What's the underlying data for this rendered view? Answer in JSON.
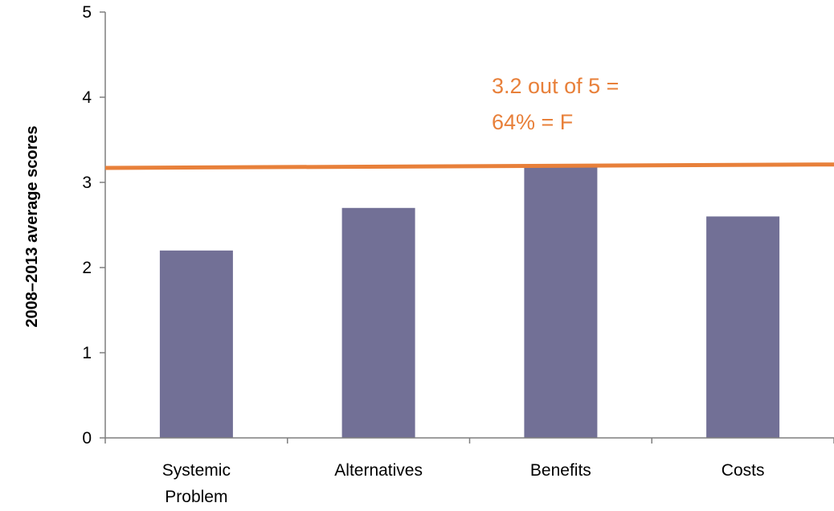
{
  "chart_data": {
    "type": "bar",
    "categories": [
      [
        "Systemic",
        "Problem"
      ],
      [
        "Alternatives"
      ],
      [
        "Benefits"
      ],
      [
        "Costs"
      ]
    ],
    "values": [
      2.2,
      2.7,
      3.2,
      2.6
    ],
    "ylabel": "2008–2013 average scores",
    "xlabel": "",
    "title": "",
    "ylim": [
      0,
      5
    ],
    "yticks": [
      0,
      1,
      2,
      3,
      4,
      5
    ],
    "grid": false,
    "legend": "none",
    "reference_line": {
      "start": 3.17,
      "end": 3.21
    },
    "annotation": [
      "3.2 out of 5 =",
      "64% = F"
    ],
    "colors": {
      "bar": "#727096",
      "line": "#e8803a",
      "annotation": "#e8803a",
      "axis": "#7f7f7f"
    }
  }
}
